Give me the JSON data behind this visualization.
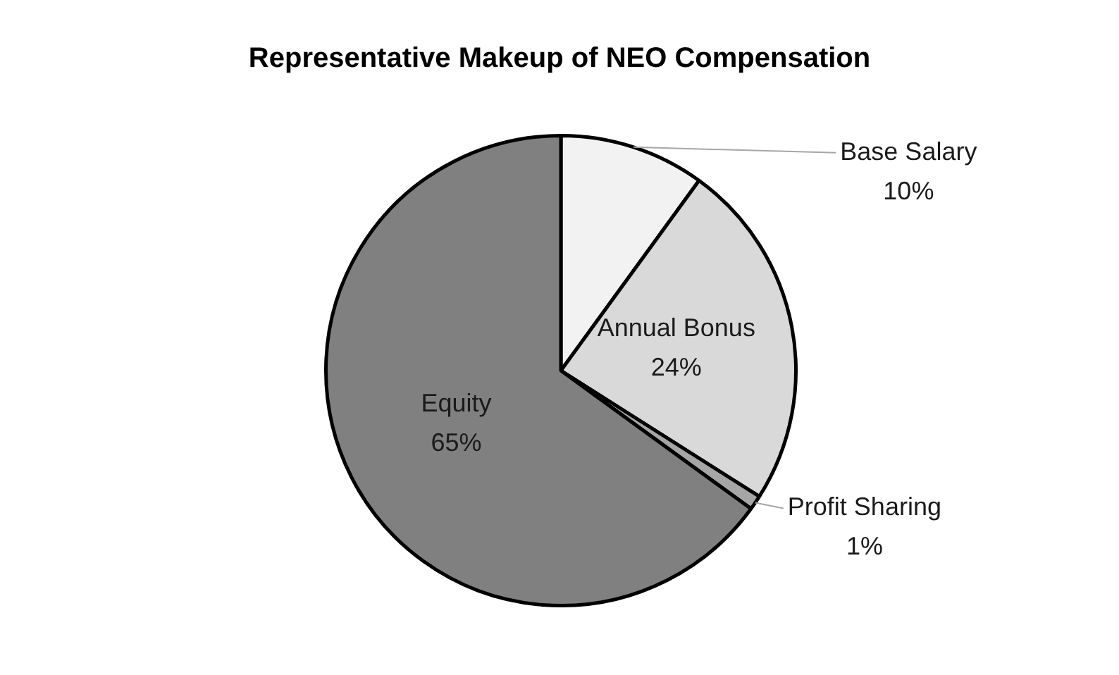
{
  "chart_data": {
    "type": "pie",
    "title": "Representative Makeup of NEO Compensation",
    "categories": [
      "Base Salary",
      "Annual Bonus",
      "Profit Sharing",
      "Equity"
    ],
    "values": [
      10,
      24,
      1,
      65
    ],
    "colors": [
      "#f2f2f2",
      "#d9d9d9",
      "#a6a6a6",
      "#808080"
    ],
    "value_labels": [
      "10%",
      "24%",
      "1%",
      "65%"
    ],
    "legend": false
  }
}
